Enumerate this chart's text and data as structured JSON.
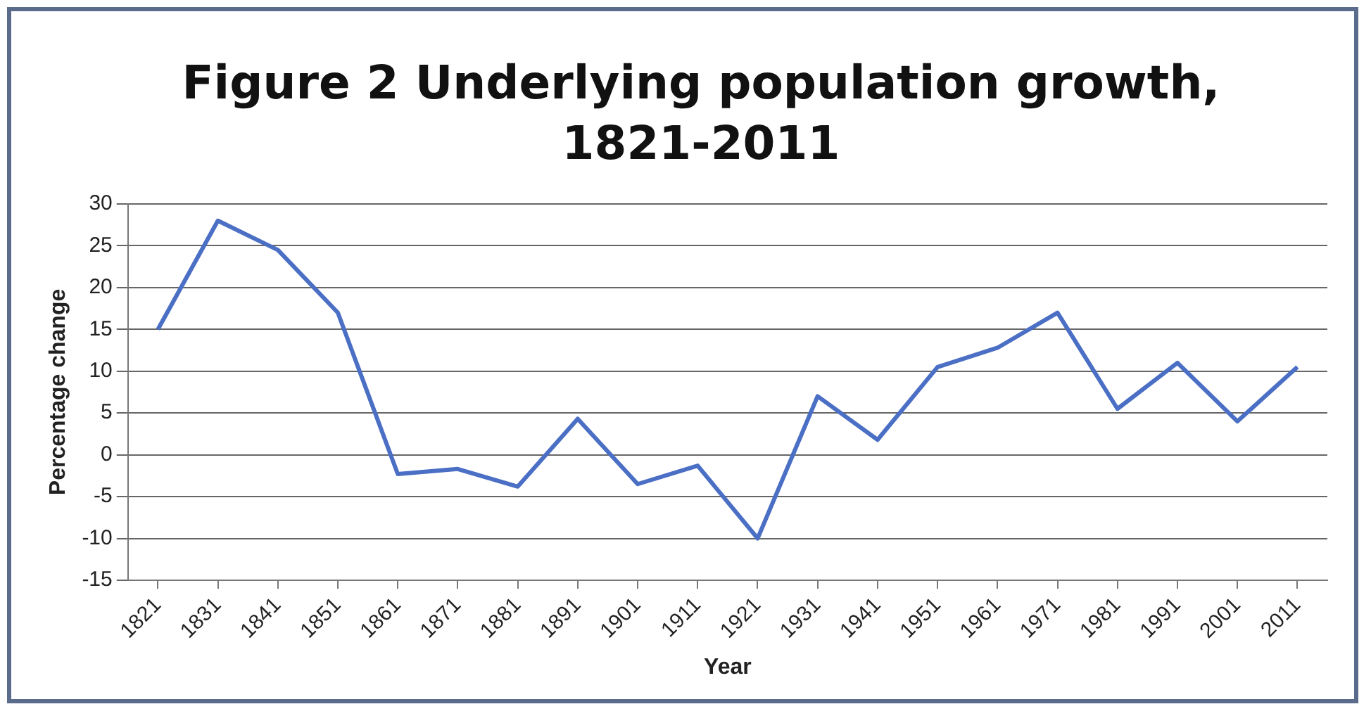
{
  "chart_data": {
    "type": "line",
    "title": "Figure 2 Underlying population growth, 1821-2011",
    "xlabel": "Year",
    "ylabel": "Percentage change",
    "categories": [
      "1821",
      "1831",
      "1841",
      "1851",
      "1861",
      "1871",
      "1881",
      "1891",
      "1901",
      "1911",
      "1921",
      "1931",
      "1941",
      "1951",
      "1961",
      "1971",
      "1981",
      "1991",
      "2001",
      "2011"
    ],
    "series": [
      {
        "color": "#4a6fc4",
        "values": [
          15,
          28,
          24.5,
          17,
          -2.3,
          -1.7,
          -3.8,
          4.3,
          -3.5,
          -1.3,
          -10,
          7,
          1.8,
          10.5,
          12.8,
          17,
          5.5,
          11,
          4,
          10.5
        ]
      }
    ],
    "ylim": [
      -15,
      30
    ],
    "yticks": [
      -15,
      -10,
      -5,
      0,
      5,
      10,
      15,
      20,
      25,
      30
    ],
    "grid": "y",
    "legend": false,
    "marker": "none",
    "line_style": "solid"
  }
}
